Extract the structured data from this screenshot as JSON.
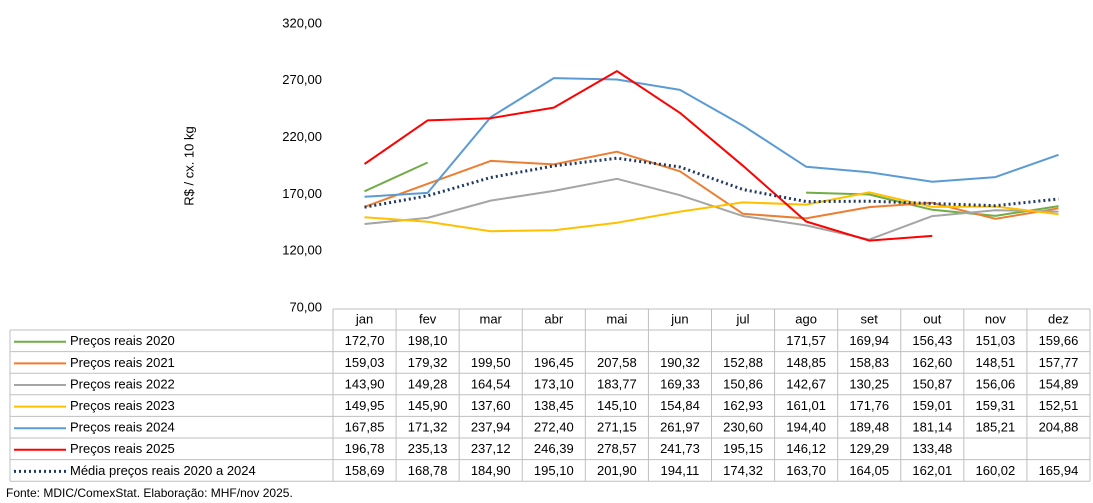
{
  "chart_data": {
    "type": "line",
    "y_label": "R$ / cx. 10 kg",
    "source": "Fonte: MDIC/ComexStat. Elaboração: MHF/nov 2025.",
    "categories": [
      "jan",
      "fev",
      "mar",
      "abr",
      "mai",
      "jun",
      "jul",
      "ago",
      "set",
      "out",
      "nov",
      "dez"
    ],
    "ylim": [
      70,
      320
    ],
    "yticks": [
      {
        "value": 70,
        "label": "70,00"
      },
      {
        "value": 120,
        "label": "120,00"
      },
      {
        "value": 170,
        "label": "170,00"
      },
      {
        "value": 220,
        "label": "220,00"
      },
      {
        "value": 270,
        "label": "270,00"
      },
      {
        "value": 320,
        "label": "320,00"
      }
    ],
    "grid": false,
    "series": [
      {
        "name": "Preços reais 2020",
        "color": "#70ad47",
        "dash": false,
        "values": [
          172.7,
          198.1,
          null,
          null,
          null,
          null,
          null,
          171.57,
          169.94,
          156.43,
          151.03,
          159.66
        ],
        "value_labels": [
          "172,70",
          "198,10",
          null,
          null,
          null,
          null,
          null,
          "171,57",
          "169,94",
          "156,43",
          "151,03",
          "159,66"
        ]
      },
      {
        "name": "Preços reais 2021",
        "color": "#ed7d31",
        "dash": false,
        "values": [
          159.03,
          179.32,
          199.5,
          196.45,
          207.58,
          190.32,
          152.88,
          148.85,
          158.83,
          162.6,
          148.51,
          157.77
        ],
        "value_labels": [
          "159,03",
          "179,32",
          "199,50",
          "196,45",
          "207,58",
          "190,32",
          "152,88",
          "148,85",
          "158,83",
          "162,60",
          "148,51",
          "157,77"
        ]
      },
      {
        "name": "Preços reais 2022",
        "color": "#a5a5a5",
        "dash": false,
        "values": [
          143.9,
          149.28,
          164.54,
          173.1,
          183.77,
          169.33,
          150.86,
          142.67,
          130.25,
          150.87,
          156.06,
          154.89
        ],
        "value_labels": [
          "143,90",
          "149,28",
          "164,54",
          "173,10",
          "183,77",
          "169,33",
          "150,86",
          "142,67",
          "130,25",
          "150,87",
          "156,06",
          "154,89"
        ]
      },
      {
        "name": "Preços reais 2023",
        "color": "#ffc000",
        "dash": false,
        "values": [
          149.95,
          145.9,
          137.6,
          138.45,
          145.1,
          154.84,
          162.93,
          161.01,
          171.76,
          159.01,
          159.31,
          152.51
        ],
        "value_labels": [
          "149,95",
          "145,90",
          "137,60",
          "138,45",
          "145,10",
          "154,84",
          "162,93",
          "161,01",
          "171,76",
          "159,01",
          "159,31",
          "152,51"
        ]
      },
      {
        "name": "Preços reais 2024",
        "color": "#5b9bd5",
        "dash": false,
        "values": [
          167.85,
          171.32,
          237.94,
          272.4,
          271.15,
          261.97,
          230.6,
          194.4,
          189.48,
          181.14,
          185.21,
          204.88
        ],
        "value_labels": [
          "167,85",
          "171,32",
          "237,94",
          "272,40",
          "271,15",
          "261,97",
          "230,60",
          "194,40",
          "189,48",
          "181,14",
          "185,21",
          "204,88"
        ]
      },
      {
        "name": "Preços reais 2025",
        "color": "#ff0000",
        "dash": false,
        "values": [
          196.78,
          235.13,
          237.12,
          246.39,
          278.57,
          241.73,
          195.15,
          146.12,
          129.29,
          133.48,
          null,
          null
        ],
        "value_labels": [
          "196,78",
          "235,13",
          "237,12",
          "246,39",
          "278,57",
          "241,73",
          "195,15",
          "146,12",
          "129,29",
          "133,48",
          null,
          null
        ]
      },
      {
        "name": "Média preços reais 2020 a 2024",
        "color": "#203864",
        "dash": true,
        "values": [
          158.69,
          168.78,
          184.9,
          195.1,
          201.9,
          194.11,
          174.32,
          163.7,
          164.05,
          162.01,
          160.02,
          165.94
        ],
        "value_labels": [
          "158,69",
          "168,78",
          "184,90",
          "195,10",
          "201,90",
          "194,11",
          "174,32",
          "163,70",
          "164,05",
          "162,01",
          "160,02",
          "165,94"
        ]
      }
    ]
  }
}
